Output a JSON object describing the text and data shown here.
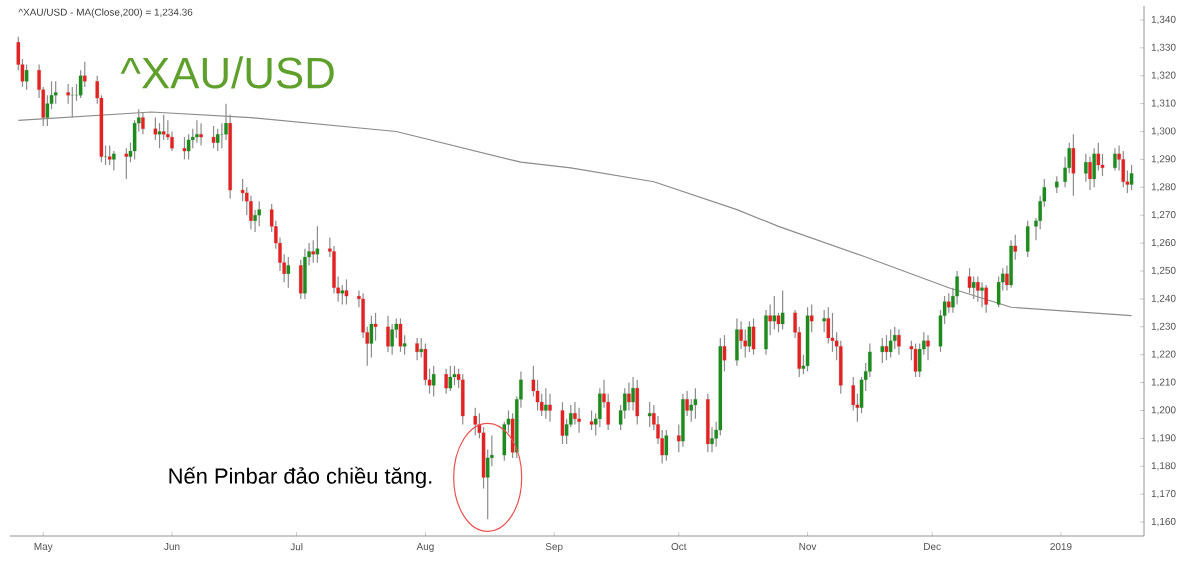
{
  "chart_data": {
    "type": "candlestick",
    "title": "^XAU/USD - MA(Close,200) = 1,234.36",
    "subtitle": "^XAU/USD",
    "annotations": [
      {
        "text": "Nến Pinbar đảo chiều tăng.",
        "x": "2018-08-16",
        "y": 1176
      }
    ],
    "xlim": [
      "2018-04-23",
      "2019-01-21"
    ],
    "xticks": [
      {
        "value": "2018-05-01",
        "label": "May"
      },
      {
        "value": "2018-06-01",
        "label": "Jun"
      },
      {
        "value": "2018-07-01",
        "label": "Jul"
      },
      {
        "value": "2018-08-01",
        "label": "Aug"
      },
      {
        "value": "2018-09-01",
        "label": "Sep"
      },
      {
        "value": "2018-10-01",
        "label": "Oct"
      },
      {
        "value": "2018-11-01",
        "label": "Nov"
      },
      {
        "value": "2018-12-01",
        "label": "Dec"
      },
      {
        "value": "2019-01-01",
        "label": "2019"
      }
    ],
    "ylim": [
      1155,
      1345
    ],
    "yticks": [
      {
        "value": 1160,
        "label": "1,160"
      },
      {
        "value": 1170,
        "label": "1,170"
      },
      {
        "value": 1180,
        "label": "1,180"
      },
      {
        "value": 1190,
        "label": "1,190"
      },
      {
        "value": 1200,
        "label": "1,200"
      },
      {
        "value": 1210,
        "label": "1,210"
      },
      {
        "value": 1220,
        "label": "1,220"
      },
      {
        "value": 1230,
        "label": "1,230"
      },
      {
        "value": 1240,
        "label": "1,240"
      },
      {
        "value": 1250,
        "label": "1,250"
      },
      {
        "value": 1260,
        "label": "1,260"
      },
      {
        "value": 1270,
        "label": "1,270"
      },
      {
        "value": 1280,
        "label": "1,280"
      },
      {
        "value": 1290,
        "label": "1,290"
      },
      {
        "value": 1300,
        "label": "1,300"
      },
      {
        "value": 1310,
        "label": "1,310"
      },
      {
        "value": 1320,
        "label": "1,320"
      },
      {
        "value": 1330,
        "label": "1,330"
      },
      {
        "value": 1340,
        "label": "1,340"
      }
    ],
    "series": [
      {
        "type": "line",
        "color": "#8c8c8c",
        "x": [
          "2018-04-25",
          "2018-05-27",
          "2018-06-20",
          "2018-07-25",
          "2018-08-24",
          "2018-09-05",
          "2018-09-25",
          "2018-10-15",
          "2018-10-25",
          "2018-11-15",
          "2018-12-05",
          "2018-12-20",
          "2019-01-18"
        ],
        "values": [
          1304,
          1307,
          1305,
          1300,
          1289,
          1287,
          1282,
          1272,
          1266,
          1255,
          1244,
          1237,
          1234
        ]
      },
      {
        "x": [
          "2018-04-25",
          "2018-04-26",
          "2018-04-27",
          "2018-04-30",
          "2018-05-01",
          "2018-05-02",
          "2018-05-03",
          "2018-05-04",
          "2018-05-07",
          "2018-05-08",
          "2018-05-09",
          "2018-05-10",
          "2018-05-11",
          "2018-05-14",
          "2018-05-15",
          "2018-05-16",
          "2018-05-17",
          "2018-05-18",
          "2018-05-21",
          "2018-05-22",
          "2018-05-23",
          "2018-05-24",
          "2018-05-25",
          "2018-05-28",
          "2018-05-29",
          "2018-05-30",
          "2018-05-31",
          "2018-06-01",
          "2018-06-04",
          "2018-06-05",
          "2018-06-06",
          "2018-06-07",
          "2018-06-08",
          "2018-06-11",
          "2018-06-12",
          "2018-06-13",
          "2018-06-14",
          "2018-06-15",
          "2018-06-18",
          "2018-06-19",
          "2018-06-20",
          "2018-06-21",
          "2018-06-22",
          "2018-06-25",
          "2018-06-26",
          "2018-06-27",
          "2018-06-28",
          "2018-06-29",
          "2018-07-02",
          "2018-07-03",
          "2018-07-04",
          "2018-07-05",
          "2018-07-06",
          "2018-07-09",
          "2018-07-10",
          "2018-07-11",
          "2018-07-12",
          "2018-07-13",
          "2018-07-16",
          "2018-07-17",
          "2018-07-18",
          "2018-07-19",
          "2018-07-20",
          "2018-07-23",
          "2018-07-24",
          "2018-07-25",
          "2018-07-26",
          "2018-07-27",
          "2018-07-30",
          "2018-07-31",
          "2018-08-01",
          "2018-08-02",
          "2018-08-03",
          "2018-08-06",
          "2018-08-07",
          "2018-08-08",
          "2018-08-09",
          "2018-08-10",
          "2018-08-13",
          "2018-08-14",
          "2018-08-15",
          "2018-08-16",
          "2018-08-17",
          "2018-08-20",
          "2018-08-21",
          "2018-08-22",
          "2018-08-23",
          "2018-08-24",
          "2018-08-27",
          "2018-08-28",
          "2018-08-29",
          "2018-08-30",
          "2018-08-31",
          "2018-09-03",
          "2018-09-04",
          "2018-09-05",
          "2018-09-06",
          "2018-09-07",
          "2018-09-10",
          "2018-09-11",
          "2018-09-12",
          "2018-09-13",
          "2018-09-14",
          "2018-09-17",
          "2018-09-18",
          "2018-09-19",
          "2018-09-20",
          "2018-09-21",
          "2018-09-24",
          "2018-09-25",
          "2018-09-26",
          "2018-09-27",
          "2018-09-28",
          "2018-10-01",
          "2018-10-02",
          "2018-10-03",
          "2018-10-04",
          "2018-10-05",
          "2018-10-08",
          "2018-10-09",
          "2018-10-10",
          "2018-10-11",
          "2018-10-12",
          "2018-10-15",
          "2018-10-16",
          "2018-10-17",
          "2018-10-18",
          "2018-10-19",
          "2018-10-22",
          "2018-10-23",
          "2018-10-24",
          "2018-10-25",
          "2018-10-26",
          "2018-10-29",
          "2018-10-30",
          "2018-10-31",
          "2018-11-01",
          "2018-11-02",
          "2018-11-05",
          "2018-11-06",
          "2018-11-07",
          "2018-11-08",
          "2018-11-09",
          "2018-11-12",
          "2018-11-13",
          "2018-11-14",
          "2018-11-15",
          "2018-11-16",
          "2018-11-19",
          "2018-11-20",
          "2018-11-21",
          "2018-11-22",
          "2018-11-23",
          "2018-11-26",
          "2018-11-27",
          "2018-11-28",
          "2018-11-29",
          "2018-11-30",
          "2018-12-03",
          "2018-12-04",
          "2018-12-05",
          "2018-12-06",
          "2018-12-07",
          "2018-12-10",
          "2018-12-11",
          "2018-12-12",
          "2018-12-13",
          "2018-12-14",
          "2018-12-17",
          "2018-12-18",
          "2018-12-19",
          "2018-12-20",
          "2018-12-21",
          "2018-12-24",
          "2018-12-26",
          "2018-12-27",
          "2018-12-28",
          "2018-12-31",
          "2019-01-02",
          "2019-01-03",
          "2019-01-04",
          "2019-01-07",
          "2019-01-08",
          "2019-01-09",
          "2019-01-10",
          "2019-01-11",
          "2019-01-14",
          "2019-01-15",
          "2019-01-16",
          "2019-01-17",
          "2019-01-18"
        ],
        "ohlc": [
          [
            1332,
            1334,
            1322,
            1324
          ],
          [
            1324,
            1326,
            1316,
            1318
          ],
          [
            1318,
            1324,
            1315,
            1322
          ],
          [
            1322,
            1324,
            1312,
            1315
          ],
          [
            1315,
            1316,
            1302,
            1305
          ],
          [
            1305,
            1313,
            1302,
            1310
          ],
          [
            1310,
            1318,
            1308,
            1313
          ],
          [
            1313,
            1318,
            1310,
            1314
          ],
          [
            1314,
            1317,
            1310,
            1313
          ],
          [
            1313,
            1316,
            1305,
            1313
          ],
          [
            1313,
            1317,
            1311,
            1313
          ],
          [
            1313,
            1322,
            1312,
            1320
          ],
          [
            1320,
            1325,
            1316,
            1318
          ],
          [
            1318,
            1320,
            1310,
            1312
          ],
          [
            1312,
            1313,
            1289,
            1291
          ],
          [
            1291,
            1295,
            1288,
            1291
          ],
          [
            1291,
            1295,
            1288,
            1290
          ],
          [
            1290,
            1293,
            1286,
            1292
          ],
          [
            1292,
            1294,
            1283,
            1291
          ],
          [
            1291,
            1296,
            1289,
            1293
          ],
          [
            1293,
            1304,
            1290,
            1303
          ],
          [
            1303,
            1308,
            1300,
            1305
          ],
          [
            1305,
            1307,
            1299,
            1301
          ],
          [
            1301,
            1305,
            1297,
            1299
          ],
          [
            1299,
            1303,
            1294,
            1300
          ],
          [
            1300,
            1306,
            1297,
            1299
          ],
          [
            1299,
            1304,
            1297,
            1298
          ],
          [
            1298,
            1300,
            1293,
            1294
          ],
          [
            1294,
            1298,
            1290,
            1293
          ],
          [
            1293,
            1299,
            1290,
            1297
          ],
          [
            1297,
            1301,
            1294,
            1298
          ],
          [
            1298,
            1304,
            1296,
            1299
          ],
          [
            1299,
            1303,
            1295,
            1298
          ],
          [
            1298,
            1302,
            1294,
            1296
          ],
          [
            1296,
            1301,
            1293,
            1299
          ],
          [
            1299,
            1303,
            1294,
            1299
          ],
          [
            1299,
            1310,
            1297,
            1303
          ],
          [
            1303,
            1306,
            1276,
            1279
          ],
          [
            1279,
            1283,
            1275,
            1278
          ],
          [
            1278,
            1280,
            1270,
            1275
          ],
          [
            1275,
            1277,
            1265,
            1268
          ],
          [
            1268,
            1272,
            1264,
            1270
          ],
          [
            1270,
            1275,
            1266,
            1272
          ],
          [
            1272,
            1274,
            1264,
            1266
          ],
          [
            1266,
            1268,
            1258,
            1260
          ],
          [
            1260,
            1262,
            1250,
            1253
          ],
          [
            1253,
            1256,
            1246,
            1249
          ],
          [
            1249,
            1255,
            1244,
            1252
          ],
          [
            1252,
            1254,
            1240,
            1242
          ],
          [
            1242,
            1258,
            1240,
            1255
          ],
          [
            1255,
            1260,
            1252,
            1257
          ],
          [
            1257,
            1261,
            1253,
            1256
          ],
          [
            1256,
            1266,
            1253,
            1258
          ],
          [
            1258,
            1262,
            1255,
            1257
          ],
          [
            1257,
            1259,
            1242,
            1244
          ],
          [
            1244,
            1248,
            1239,
            1242
          ],
          [
            1242,
            1245,
            1238,
            1243
          ],
          [
            1243,
            1247,
            1238,
            1241
          ],
          [
            1241,
            1243,
            1237,
            1240
          ],
          [
            1240,
            1242,
            1226,
            1228
          ],
          [
            1228,
            1230,
            1216,
            1224
          ],
          [
            1224,
            1234,
            1219,
            1231
          ],
          [
            1231,
            1235,
            1225,
            1230
          ],
          [
            1230,
            1234,
            1221,
            1223
          ],
          [
            1223,
            1231,
            1220,
            1229
          ],
          [
            1229,
            1233,
            1226,
            1231
          ],
          [
            1231,
            1233,
            1221,
            1223
          ],
          [
            1223,
            1227,
            1220,
            1224
          ],
          [
            1224,
            1226,
            1218,
            1221
          ],
          [
            1221,
            1226,
            1219,
            1222
          ],
          [
            1222,
            1224,
            1209,
            1211
          ],
          [
            1211,
            1215,
            1206,
            1209
          ],
          [
            1209,
            1216,
            1205,
            1213
          ],
          [
            1213,
            1215,
            1206,
            1208
          ],
          [
            1208,
            1216,
            1207,
            1212
          ],
          [
            1212,
            1216,
            1209,
            1213
          ],
          [
            1213,
            1215,
            1208,
            1211
          ],
          [
            1211,
            1213,
            1195,
            1198
          ],
          [
            1198,
            1201,
            1191,
            1195
          ],
          [
            1195,
            1199,
            1190,
            1192
          ],
          [
            1192,
            1194,
            1172,
            1176
          ],
          [
            1176,
            1186,
            1161,
            1183
          ],
          [
            1183,
            1191,
            1180,
            1184
          ],
          [
            1184,
            1196,
            1182,
            1195
          ],
          [
            1195,
            1200,
            1192,
            1197
          ],
          [
            1197,
            1199,
            1183,
            1185
          ],
          [
            1185,
            1205,
            1183,
            1204
          ],
          [
            1204,
            1214,
            1201,
            1211
          ],
          [
            1211,
            1216,
            1205,
            1207
          ],
          [
            1207,
            1211,
            1200,
            1203
          ],
          [
            1203,
            1206,
            1198,
            1200
          ],
          [
            1200,
            1208,
            1197,
            1202
          ],
          [
            1202,
            1206,
            1196,
            1200
          ],
          [
            1200,
            1203,
            1188,
            1191
          ],
          [
            1191,
            1197,
            1188,
            1195
          ],
          [
            1195,
            1202,
            1194,
            1199
          ],
          [
            1199,
            1203,
            1195,
            1197
          ],
          [
            1197,
            1201,
            1192,
            1196
          ],
          [
            1196,
            1200,
            1193,
            1195
          ],
          [
            1195,
            1199,
            1191,
            1197
          ],
          [
            1197,
            1208,
            1194,
            1206
          ],
          [
            1206,
            1211,
            1201,
            1203
          ],
          [
            1203,
            1206,
            1193,
            1195
          ],
          [
            1195,
            1202,
            1193,
            1200
          ],
          [
            1200,
            1208,
            1197,
            1206
          ],
          [
            1206,
            1210,
            1200,
            1203
          ],
          [
            1203,
            1212,
            1200,
            1208
          ],
          [
            1208,
            1211,
            1195,
            1198
          ],
          [
            1198,
            1203,
            1194,
            1199
          ],
          [
            1199,
            1202,
            1193,
            1195
          ],
          [
            1195,
            1198,
            1188,
            1190
          ],
          [
            1190,
            1193,
            1181,
            1184
          ],
          [
            1184,
            1193,
            1182,
            1191
          ],
          [
            1191,
            1195,
            1185,
            1189
          ],
          [
            1189,
            1206,
            1187,
            1204
          ],
          [
            1204,
            1207,
            1198,
            1200
          ],
          [
            1200,
            1204,
            1196,
            1202
          ],
          [
            1202,
            1208,
            1197,
            1204
          ],
          [
            1204,
            1206,
            1185,
            1188
          ],
          [
            1188,
            1194,
            1185,
            1190
          ],
          [
            1190,
            1196,
            1187,
            1193
          ],
          [
            1193,
            1226,
            1191,
            1223
          ],
          [
            1223,
            1227,
            1214,
            1218
          ],
          [
            1218,
            1233,
            1216,
            1229
          ],
          [
            1229,
            1232,
            1222,
            1225
          ],
          [
            1225,
            1229,
            1219,
            1223
          ],
          [
            1223,
            1232,
            1221,
            1230
          ],
          [
            1230,
            1233,
            1220,
            1222
          ],
          [
            1222,
            1236,
            1220,
            1234
          ],
          [
            1234,
            1238,
            1227,
            1232
          ],
          [
            1232,
            1241,
            1229,
            1234
          ],
          [
            1234,
            1235,
            1228,
            1231
          ],
          [
            1231,
            1243,
            1229,
            1235
          ],
          [
            1235,
            1236,
            1226,
            1228
          ],
          [
            1228,
            1230,
            1212,
            1215
          ],
          [
            1215,
            1220,
            1213,
            1216
          ],
          [
            1216,
            1237,
            1214,
            1234
          ],
          [
            1234,
            1238,
            1228,
            1232
          ],
          [
            1232,
            1236,
            1228,
            1233
          ],
          [
            1233,
            1237,
            1224,
            1226
          ],
          [
            1226,
            1235,
            1221,
            1225
          ],
          [
            1225,
            1228,
            1218,
            1223
          ],
          [
            1223,
            1225,
            1206,
            1209
          ],
          [
            1209,
            1212,
            1200,
            1202
          ],
          [
            1202,
            1206,
            1196,
            1201
          ],
          [
            1201,
            1212,
            1199,
            1211
          ],
          [
            1211,
            1217,
            1207,
            1214
          ],
          [
            1214,
            1224,
            1212,
            1221
          ],
          [
            1221,
            1226,
            1217,
            1223
          ],
          [
            1223,
            1227,
            1218,
            1221
          ],
          [
            1221,
            1229,
            1219,
            1225
          ],
          [
            1225,
            1230,
            1222,
            1227
          ],
          [
            1227,
            1229,
            1220,
            1223
          ],
          [
            1223,
            1225,
            1218,
            1222
          ],
          [
            1222,
            1224,
            1212,
            1214
          ],
          [
            1214,
            1224,
            1212,
            1222
          ],
          [
            1222,
            1228,
            1220,
            1225
          ],
          [
            1225,
            1227,
            1218,
            1223
          ],
          [
            1223,
            1236,
            1221,
            1234
          ],
          [
            1234,
            1241,
            1231,
            1239
          ],
          [
            1239,
            1242,
            1235,
            1237
          ],
          [
            1237,
            1244,
            1235,
            1241
          ],
          [
            1241,
            1250,
            1238,
            1248
          ],
          [
            1248,
            1251,
            1242,
            1244
          ],
          [
            1244,
            1248,
            1240,
            1246
          ],
          [
            1246,
            1248,
            1239,
            1243
          ],
          [
            1243,
            1246,
            1237,
            1244
          ],
          [
            1244,
            1245,
            1235,
            1238
          ],
          [
            1238,
            1248,
            1237,
            1246
          ],
          [
            1246,
            1251,
            1243,
            1249
          ],
          [
            1249,
            1252,
            1243,
            1245
          ],
          [
            1245,
            1261,
            1244,
            1259
          ],
          [
            1259,
            1263,
            1254,
            1257
          ],
          [
            1257,
            1268,
            1255,
            1266
          ],
          [
            1266,
            1269,
            1261,
            1268
          ],
          [
            1268,
            1277,
            1265,
            1275
          ],
          [
            1275,
            1283,
            1273,
            1280
          ],
          [
            1280,
            1284,
            1278,
            1282
          ],
          [
            1282,
            1291,
            1280,
            1287
          ],
          [
            1287,
            1296,
            1285,
            1294
          ],
          [
            1294,
            1299,
            1277,
            1285
          ],
          [
            1285,
            1292,
            1282,
            1289
          ],
          [
            1289,
            1291,
            1279,
            1283
          ],
          [
            1283,
            1294,
            1280,
            1292
          ],
          [
            1292,
            1296,
            1286,
            1288
          ],
          [
            1288,
            1292,
            1284,
            1287
          ],
          [
            1287,
            1294,
            1286,
            1292
          ],
          [
            1292,
            1295,
            1286,
            1290
          ],
          [
            1290,
            1293,
            1280,
            1282
          ],
          [
            1282,
            1286,
            1278,
            1281
          ],
          [
            1281,
            1288,
            1279,
            1285
          ]
        ]
      }
    ]
  }
}
